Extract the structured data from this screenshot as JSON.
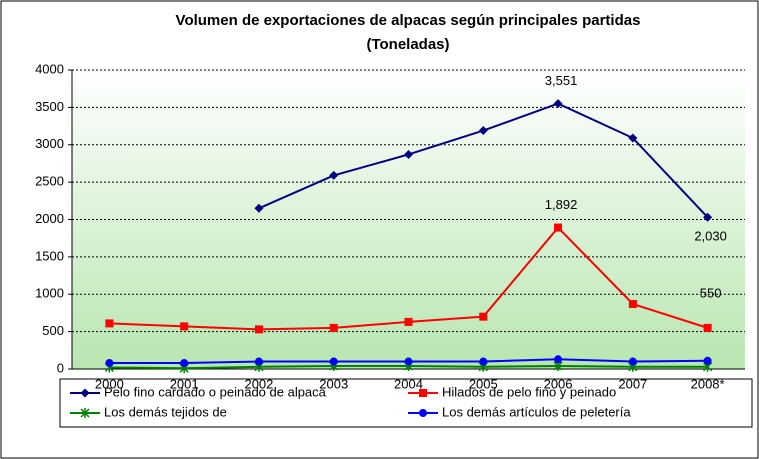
{
  "chart_data": {
    "type": "line",
    "title": "Volumen de exportaciones de alpacas según principales partidas",
    "subtitle": "(Toneladas)",
    "categories": [
      "2000",
      "2001",
      "2002",
      "2003",
      "2004",
      "2005",
      "2006",
      "2007",
      "2008*"
    ],
    "series": [
      {
        "name": "Pelo fino cardado o peinado de alpaca",
        "color": "#000080",
        "marker": "diamond",
        "values": [
          null,
          null,
          2150,
          2590,
          2870,
          3190,
          3551,
          3090,
          2030
        ],
        "value_labels": [
          null,
          null,
          null,
          null,
          null,
          null,
          "3,551",
          null,
          "2,030"
        ]
      },
      {
        "name": "Hilados de pelo fino y peinado",
        "color": "#ff0000",
        "marker": "square",
        "values": [
          610,
          570,
          530,
          550,
          630,
          700,
          1892,
          870,
          550
        ],
        "value_labels": [
          null,
          null,
          null,
          null,
          null,
          null,
          "1,892",
          null,
          "550"
        ]
      },
      {
        "name": "Los demás tejidos de",
        "color": "#008000",
        "marker": "star",
        "values": [
          20,
          10,
          30,
          40,
          40,
          30,
          40,
          30,
          30
        ]
      },
      {
        "name": "Los demás artículos de peletería",
        "color": "#0000ff",
        "marker": "circle",
        "values": [
          80,
          80,
          100,
          100,
          100,
          100,
          130,
          100,
          110
        ]
      }
    ],
    "ylim": [
      0,
      4000
    ],
    "yticks": [
      0,
      500,
      1000,
      1500,
      2000,
      2500,
      3000,
      3500,
      4000
    ],
    "grid": true
  }
}
